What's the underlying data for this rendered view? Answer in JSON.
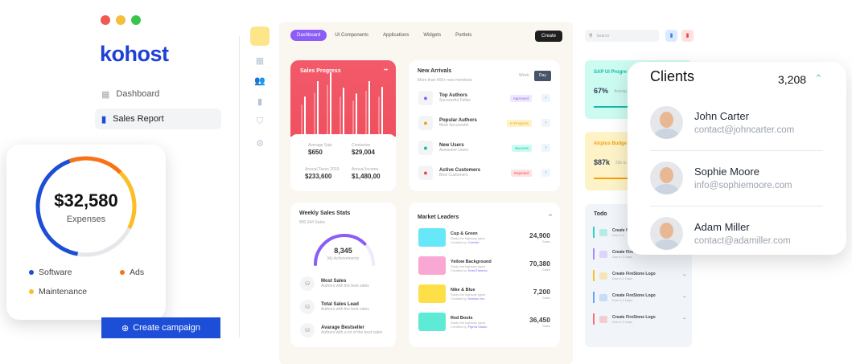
{
  "window": {
    "colors": [
      "#ee5a52",
      "#f5be3b",
      "#39c54a"
    ]
  },
  "brand": {
    "logo": "kohost",
    "color": "#1e40d6"
  },
  "nav": [
    {
      "label": "Dashboard",
      "icon": "grid-icon"
    },
    {
      "label": "Sales Report",
      "icon": "bar-chart-icon",
      "active": true
    }
  ],
  "expenses": {
    "amount": "$32,580",
    "label": "Expenses",
    "legend": [
      {
        "label": "Software",
        "color": "#1d4ed8"
      },
      {
        "label": "Ads",
        "color": "#f97316"
      },
      {
        "label": "Maintenance",
        "color": "#fbbf24"
      }
    ]
  },
  "create_campaign": "Create campaign",
  "dashboard": {
    "tabs": [
      "Dashboard",
      "UI Components",
      "Applications",
      "Widgets",
      "Portlets"
    ],
    "create": "Create",
    "sales_progress": {
      "title": "Sales Progress",
      "stats": [
        {
          "label": "Average Sale",
          "value": "$650"
        },
        {
          "label": "Comission",
          "value": "$29,004"
        },
        {
          "label": "Annual Taxes 2019",
          "value": "$233,600"
        },
        {
          "label": "Annual Income",
          "value": "$1,480,00"
        }
      ]
    },
    "new_arrivals": {
      "title": "New Arrivals",
      "subtitle": "More than 400+ new members",
      "week": "Week",
      "day": "Day",
      "items": [
        {
          "title": "Top Authors",
          "sub": "Successful Fellas",
          "badge": "Approved",
          "bg": "#ede9fe",
          "fg": "#8b5cf6",
          "icon": "p-logo-icon"
        },
        {
          "title": "Popular Authors",
          "sub": "Most Successful",
          "badge": "In Progress",
          "bg": "#fef3c7",
          "fg": "#f59e0b",
          "icon": "telegram-icon"
        },
        {
          "title": "New Users",
          "sub": "Awesome Users",
          "badge": "Success",
          "bg": "#ccfbf1",
          "fg": "#14b8a6",
          "icon": "puzzle-icon"
        },
        {
          "title": "Active Customers",
          "sub": "Best Customers",
          "badge": "Rejected",
          "bg": "#fee2e2",
          "fg": "#ef4444",
          "icon": "b-logo-icon"
        }
      ]
    },
    "weekly": {
      "title": "Weekly Sales Stats",
      "subtitle": "890,344 Sales",
      "value": "8,345",
      "value_label": "My Achievements",
      "progress": 0.75,
      "items": [
        {
          "title": "Most Sales",
          "sub": "Authors with the best sales"
        },
        {
          "title": "Total Sales Lead",
          "sub": "Authors with the best sales"
        },
        {
          "title": "Avarage Bestseller",
          "sub": "Authors with a lot of the best sales"
        }
      ]
    },
    "market": {
      "title": "Market Leaders",
      "items": [
        {
          "title": "Cup & Green",
          "sub": "Study the highway types",
          "by": "Created by:",
          "author": "CoreAd",
          "value": "24,900",
          "unit": "Sales",
          "color": "#67e8f9"
        },
        {
          "title": "Yellow Background",
          "sub": "Study the highway types",
          "by": "Created by:",
          "author": "KeenThemes",
          "value": "70,380",
          "unit": "Sales",
          "color": "#f9a8d4"
        },
        {
          "title": "Nike & Blue",
          "sub": "Study the highway types",
          "by": "Created by:",
          "author": "Invision Inc.",
          "value": "7,200",
          "unit": "Sales",
          "color": "#fde047"
        },
        {
          "title": "Red Boots",
          "sub": "Study the highway types",
          "by": "Created by:",
          "author": "Figma Studio",
          "value": "36,450",
          "unit": "Sales",
          "color": "#5eead4"
        }
      ]
    }
  },
  "right": {
    "search_placeholder": "Search",
    "sap": {
      "title": "SAP UI Progre",
      "value": "67%",
      "sub": "Averag",
      "progress": 0.67
    },
    "airplus": {
      "title": "Airplus Budge",
      "value": "$87k",
      "sub": "22k to"
    },
    "todo": {
      "title": "Todo",
      "items": [
        {
          "title": "Create f",
          "sub": "Due in 2",
          "color": "#2dd4bf"
        },
        {
          "title": "Create Fire",
          "sub": "Due in 2 Days",
          "color": "#a78bfa"
        },
        {
          "title": "Create FireStone Logo",
          "sub": "Due in 2 Days",
          "color": "#fbbf24"
        },
        {
          "title": "Create FireStone Logo",
          "sub": "Due in 2 Days",
          "color": "#60a5fa"
        },
        {
          "title": "Create FireStone Logo",
          "sub": "Due in 2 Days",
          "color": "#f87171"
        }
      ]
    }
  },
  "clients": {
    "title": "Clients",
    "count": "3,208",
    "trend": "up",
    "list": [
      {
        "name": "John Carter",
        "email": "contact@johncarter.com"
      },
      {
        "name": "Sophie Moore",
        "email": "info@sophiemoore.com"
      },
      {
        "name": "Adam Miller",
        "email": "contact@adamiller.com"
      }
    ]
  }
}
